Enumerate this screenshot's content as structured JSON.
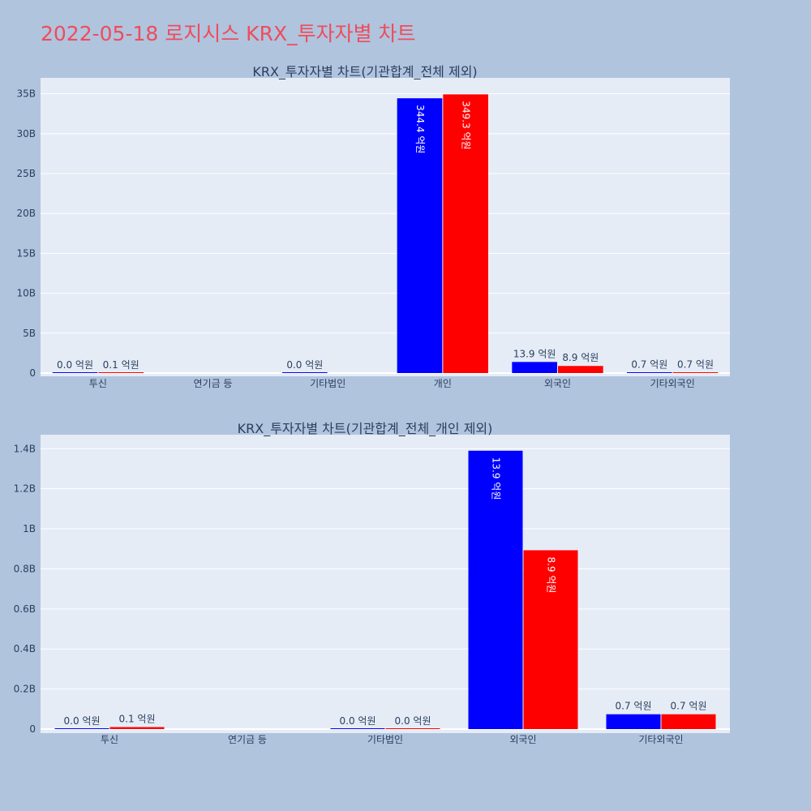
{
  "page_title": "2022-05-18 로지시스 KRX_투자자별 차트",
  "colors": {
    "series1": "#0000ff",
    "series2": "#ff0000",
    "plot_bg": "#e5ecf6",
    "page_bg": "#b0c4de",
    "title": "#ef4c5c",
    "grid": "#ffffff"
  },
  "chart_data": [
    {
      "type": "bar",
      "title": "KRX_투자자별 차트(기관합계_전체 제외)",
      "categories": [
        "투신",
        "연기금 등",
        "기타법인",
        "개인",
        "외국인",
        "기타외국인"
      ],
      "series": [
        {
          "values": [
            0.0,
            null,
            0.0,
            34.44,
            1.39,
            0.07
          ],
          "labels": [
            "0.0 억원",
            "",
            "0.0 억원",
            "344.4 억원",
            "13.9 억원",
            "0.7 억원"
          ]
        },
        {
          "values": [
            0.01,
            null,
            null,
            34.93,
            0.89,
            0.07
          ],
          "labels": [
            "0.1 억원",
            "",
            "",
            "349.3 억원",
            "8.9 억원",
            "0.7 억원"
          ]
        }
      ],
      "ylim": [
        0,
        37
      ],
      "yticks": [
        0,
        5,
        10,
        15,
        20,
        25,
        30,
        35
      ],
      "ytick_labels": [
        "0",
        "5B",
        "10B",
        "15B",
        "20B",
        "25B",
        "30B",
        "35B"
      ],
      "grid": true
    },
    {
      "type": "bar",
      "title": "KRX_투자자별 차트(기관합계_전체_개인 제외)",
      "categories": [
        "투신",
        "연기금 등",
        "기타법인",
        "외국인",
        "기타외국인"
      ],
      "series": [
        {
          "values": [
            0.0,
            null,
            0.0,
            1.39,
            0.074
          ],
          "labels": [
            "0.0 억원",
            "",
            "0.0 억원",
            "13.9 억원",
            "0.7 억원"
          ]
        },
        {
          "values": [
            0.01,
            null,
            0.0,
            0.893,
            0.074
          ],
          "labels": [
            "0.1 억원",
            "",
            "0.0 억원",
            "8.9 억원",
            "0.7 억원"
          ]
        }
      ],
      "ylim": [
        0,
        1.47
      ],
      "yticks": [
        0,
        0.2,
        0.4,
        0.6,
        0.8,
        1.0,
        1.2,
        1.4
      ],
      "ytick_labels": [
        "0",
        "0.2B",
        "0.4B",
        "0.6B",
        "0.8B",
        "1B",
        "1.2B",
        "1.4B"
      ],
      "grid": true
    }
  ]
}
